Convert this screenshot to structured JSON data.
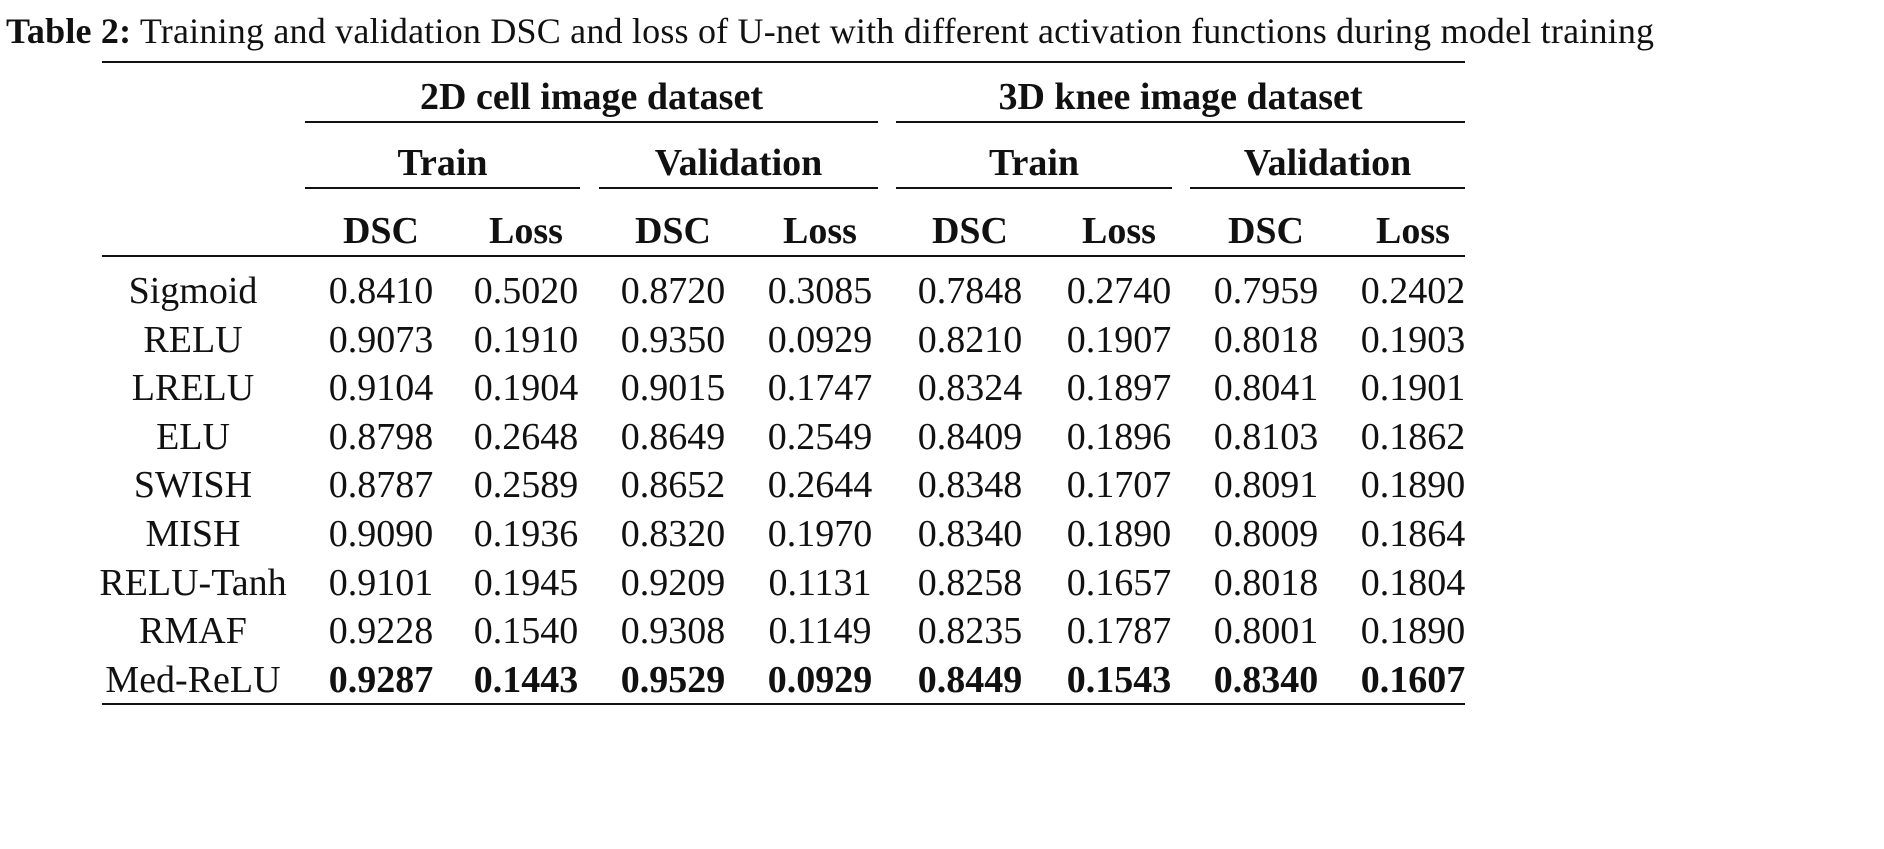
{
  "caption": {
    "label": "Table 2:",
    "text": "Training and validation DSC and loss of U-net with different activation functions during model training"
  },
  "header": {
    "datasets": [
      "2D cell image dataset",
      "3D knee image dataset"
    ],
    "splits": [
      "Train",
      "Validation",
      "Train",
      "Validation"
    ],
    "metrics": [
      "DSC",
      "Loss",
      "DSC",
      "Loss",
      "DSC",
      "Loss",
      "DSC",
      "Loss"
    ]
  },
  "rows": [
    {
      "name": "Sigmoid",
      "values": [
        "0.8410",
        "0.5020",
        "0.8720",
        "0.3085",
        "0.7848",
        "0.2740",
        "0.7959",
        "0.2402"
      ],
      "bold": false
    },
    {
      "name": "RELU",
      "values": [
        "0.9073",
        "0.1910",
        "0.9350",
        "0.0929",
        "0.8210",
        "0.1907",
        "0.8018",
        "0.1903"
      ],
      "bold": false
    },
    {
      "name": "LRELU",
      "values": [
        "0.9104",
        "0.1904",
        "0.9015",
        "0.1747",
        "0.8324",
        "0.1897",
        "0.8041",
        "0.1901"
      ],
      "bold": false
    },
    {
      "name": "ELU",
      "values": [
        "0.8798",
        "0.2648",
        "0.8649",
        "0.2549",
        "0.8409",
        "0.1896",
        "0.8103",
        "0.1862"
      ],
      "bold": false
    },
    {
      "name": "SWISH",
      "values": [
        "0.8787",
        "0.2589",
        "0.8652",
        "0.2644",
        "0.8348",
        "0.1707",
        "0.8091",
        "0.1890"
      ],
      "bold": false
    },
    {
      "name": "MISH",
      "values": [
        "0.9090",
        "0.1936",
        "0.8320",
        "0.1970",
        "0.8340",
        "0.1890",
        "0.8009",
        "0.1864"
      ],
      "bold": false
    },
    {
      "name": "RELU-Tanh",
      "values": [
        "0.9101",
        "0.1945",
        "0.9209",
        "0.1131",
        "0.8258",
        "0.1657",
        "0.8018",
        "0.1804"
      ],
      "bold": false
    },
    {
      "name": "RMAF",
      "values": [
        "0.9228",
        "0.1540",
        "0.9308",
        "0.1149",
        "0.8235",
        "0.1787",
        "0.8001",
        "0.1890"
      ],
      "bold": false
    },
    {
      "name": "Med-ReLU",
      "values": [
        "0.9287",
        "0.1443",
        "0.9529",
        "0.0929",
        "0.8449",
        "0.1543",
        "0.8340",
        "0.1607"
      ],
      "bold": true
    }
  ]
}
